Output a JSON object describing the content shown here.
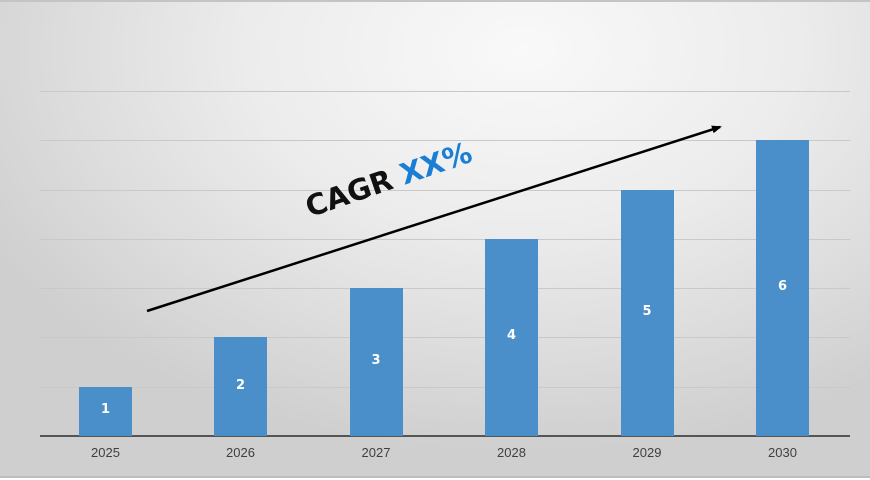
{
  "chart_data": {
    "type": "bar",
    "title": "",
    "xlabel": "",
    "ylabel": "",
    "categories": [
      "2025",
      "2026",
      "2027",
      "2028",
      "2029",
      "2030"
    ],
    "values": [
      1,
      2,
      3,
      4,
      5,
      6
    ],
    "data_labels": [
      "1",
      "2",
      "3",
      "4",
      "5",
      "6"
    ],
    "ylim": [
      0,
      7
    ],
    "grid": true,
    "y_tick_labels_visible": false,
    "legend": null,
    "bar_color": "#4a8fca",
    "annotations": [
      {
        "type": "arrow",
        "direction": "upward-trend",
        "from_category": "2025",
        "to_category": "2030"
      },
      {
        "type": "text",
        "text": "CAGR XX%",
        "parts": [
          "CAGR",
          "XX%"
        ],
        "highlight_color": "#1a7fd4"
      }
    ]
  },
  "annotation": {
    "cagr_label": "CAGR",
    "cagr_value": "XX%"
  }
}
